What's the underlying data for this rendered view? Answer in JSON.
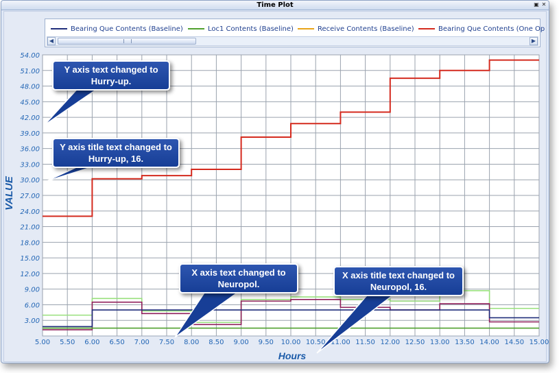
{
  "window": {
    "title": "Time Plot"
  },
  "legend": {
    "items": [
      {
        "label": "Bearing Que Contents (Baseline)",
        "color": "#1f2d7a"
      },
      {
        "label": "Loc1 Contents (Baseline)",
        "color": "#4fa02d"
      },
      {
        "label": "Receive Contents (Baseline)",
        "color": "#e8a317"
      },
      {
        "label": "Bearing Que Contents (One Op",
        "color": "#d42a1e"
      }
    ]
  },
  "icons": {
    "minimize": "window-restore-icon",
    "close": "close-icon",
    "scroll_left": "chevron-left-icon",
    "scroll_right": "chevron-right-icon",
    "thumb_grip": "grip-icon"
  },
  "callouts": {
    "y_axis_text": "Y axis text changed to Hurry-up.",
    "y_axis_title": "Y axis title text changed to Hurry-up, 16.",
    "x_axis_text": "X axis text changed to Neuropol.",
    "x_axis_title": "X axis title text changed to Neuropol, 16."
  },
  "chart_data": {
    "type": "line",
    "xlabel": "Hours",
    "ylabel": "VALUE",
    "xlim": [
      5.0,
      15.0
    ],
    "ylim": [
      0,
      54
    ],
    "x_ticks": [
      "5.00",
      "5.50",
      "6.00",
      "6.50",
      "7.00",
      "7.50",
      "8.00",
      "8.50",
      "9.00",
      "9.50",
      "10.00",
      "10.50",
      "11.00",
      "11.50",
      "12.00",
      "12.50",
      "13.00",
      "13.50",
      "14.00",
      "14.50",
      "15.00"
    ],
    "y_ticks": [
      "3.00",
      "6.00",
      "9.00",
      "12.00",
      "15.00",
      "18.00",
      "21.00",
      "24.00",
      "27.00",
      "30.00",
      "33.00",
      "36.00",
      "39.00",
      "42.00",
      "45.00",
      "48.00",
      "51.00",
      "54.00"
    ],
    "grid": true,
    "step": true,
    "series": [
      {
        "name": "Bearing Que Contents (One Op",
        "color": "#d42a1e",
        "x": [
          5.0,
          6.0,
          7.0,
          8.0,
          9.0,
          10.0,
          11.0,
          12.0,
          13.0,
          14.0,
          15.0
        ],
        "y": [
          23.0,
          30.2,
          30.8,
          32.0,
          38.2,
          40.8,
          43.0,
          49.5,
          51.0,
          53.0,
          53.0
        ]
      },
      {
        "name": "Bearing Que Contents (Baseline)",
        "color": "#1f2d7a",
        "x": [
          5.0,
          6.0,
          14.0,
          15.0
        ],
        "y": [
          1.8,
          5.0,
          3.5,
          3.5
        ]
      },
      {
        "name": "Loc1 Contents (Baseline)",
        "color": "#4fa02d",
        "x": [
          5.0,
          15.0
        ],
        "y": [
          1.5,
          1.5
        ]
      },
      {
        "name": "",
        "color": "#98e07c",
        "x": [
          5.0,
          6.0,
          7.0,
          8.0,
          9.0,
          10.0,
          11.0,
          12.0,
          13.0,
          14.0,
          15.0
        ],
        "y": [
          4.0,
          7.2,
          4.8,
          2.6,
          7.0,
          7.5,
          7.0,
          6.7,
          8.7,
          5.3,
          5.3
        ]
      },
      {
        "name": "",
        "color": "#8e1e5a",
        "x": [
          5.0,
          6.0,
          7.0,
          8.0,
          9.0,
          10.0,
          11.0,
          12.0,
          13.0,
          14.0,
          15.0
        ],
        "y": [
          1.2,
          6.5,
          4.3,
          2.2,
          6.7,
          7.0,
          5.5,
          5.0,
          6.2,
          2.7,
          2.7
        ]
      }
    ]
  }
}
